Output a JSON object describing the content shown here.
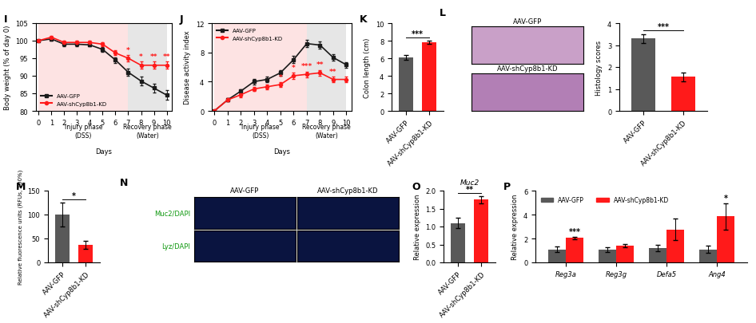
{
  "chart_data": [
    {
      "panel": "I",
      "type": "line",
      "x": [
        0,
        1,
        2,
        3,
        4,
        5,
        6,
        7,
        8,
        9,
        10
      ],
      "xlim": [
        -0.2,
        10.4
      ],
      "xticks": [
        0,
        1,
        2,
        3,
        4,
        5,
        6,
        7,
        8,
        9,
        10
      ],
      "ylim": [
        80,
        105
      ],
      "yticks": [
        80,
        85,
        90,
        95,
        100,
        105
      ],
      "x_label": "Days",
      "y_label": "Body weight (% of day 0)",
      "legend": "lower left",
      "phases": [
        {
          "label": "Injury phase\n(DSS)",
          "start": 0,
          "end": 7,
          "color": "#fde3e3"
        },
        {
          "label": "Recovery phase\n(Water)",
          "start": 7,
          "end": 10,
          "color": "#e6e6e6"
        }
      ],
      "series": [
        {
          "name": "AAV-GFP",
          "color": "#1a1a1a",
          "marker": "square",
          "values": [
            100,
            100.5,
            99,
            99,
            98.8,
            97.5,
            94.5,
            91,
            88.5,
            86.5,
            84.5
          ],
          "errors": [
            0,
            0.4,
            0.5,
            0.5,
            0.5,
            0.6,
            0.8,
            1.0,
            1.2,
            1.2,
            1.3
          ]
        },
        {
          "name": "AAV-shCyp8b1-KD",
          "color": "#ff1a1a",
          "marker": "circle",
          "values": [
            100,
            101,
            99.5,
            99.5,
            99.5,
            99,
            96.5,
            95,
            93,
            93,
            93
          ],
          "errors": [
            0,
            0.4,
            0.4,
            0.4,
            0.4,
            0.5,
            0.7,
            0.8,
            1.0,
            1.0,
            1.0
          ],
          "significance": [
            null,
            null,
            null,
            null,
            null,
            null,
            null,
            "*",
            "*",
            "**",
            "**"
          ]
        }
      ]
    },
    {
      "panel": "J",
      "type": "line",
      "x": [
        0,
        1,
        2,
        3,
        4,
        5,
        6,
        7,
        8,
        9,
        10
      ],
      "xlim": [
        -0.2,
        10.4
      ],
      "xticks": [
        0,
        1,
        2,
        3,
        4,
        5,
        6,
        7,
        8,
        9,
        10
      ],
      "ylim": [
        0,
        12
      ],
      "yticks": [
        0,
        4,
        8,
        12
      ],
      "x_label": "Days",
      "y_label": "Disease activity index",
      "legend": "upper left",
      "phases": [
        {
          "label": "Injury phase\n(DSS)",
          "start": 0,
          "end": 7,
          "color": "#fde3e3"
        },
        {
          "label": "Recovery phase\n(Water)",
          "start": 7,
          "end": 10,
          "color": "#e6e6e6"
        }
      ],
      "series": [
        {
          "name": "AAV-GFP",
          "color": "#1a1a1a",
          "marker": "square",
          "values": [
            0,
            1.5,
            2.7,
            4.0,
            4.3,
            5.2,
            7.0,
            9.2,
            9.0,
            7.3,
            6.3
          ],
          "errors": [
            0,
            0.2,
            0.3,
            0.4,
            0.4,
            0.4,
            0.5,
            0.5,
            0.5,
            0.4,
            0.4
          ]
        },
        {
          "name": "AAV-shCyp8b1-KD",
          "color": "#ff1a1a",
          "marker": "circle",
          "values": [
            0,
            1.5,
            2.2,
            3.0,
            3.3,
            3.6,
            4.8,
            5.0,
            5.2,
            4.3,
            4.3
          ],
          "errors": [
            0,
            0.2,
            0.3,
            0.3,
            0.3,
            0.3,
            0.4,
            0.4,
            0.4,
            0.4,
            0.4
          ],
          "significance": [
            null,
            null,
            null,
            null,
            null,
            "*",
            "*",
            "***",
            "**",
            "**",
            null
          ]
        }
      ]
    },
    {
      "panel": "K",
      "type": "bar",
      "categories": [
        "AAV-GFP",
        "AAV-shCyp8b1-KD"
      ],
      "values": [
        6.1,
        7.8
      ],
      "errors": [
        0.3,
        0.2
      ],
      "colors": [
        "#595959",
        "#ff1a1a"
      ],
      "ylim": [
        0,
        10
      ],
      "yticks": [
        0,
        2,
        4,
        6,
        8,
        10
      ],
      "y_label": "Colon length (cm)",
      "significance": "***"
    },
    {
      "panel": "L",
      "type": "image",
      "labels": [
        "AAV-GFP",
        "AAV-shCyp8b1-KD"
      ],
      "colors": [
        "#c9a0c8",
        "#b27fb5"
      ]
    },
    {
      "type": "bar",
      "categories": [
        "AAV-GFP",
        "AAV-shCyp8b1-KD"
      ],
      "values": [
        3.3,
        1.55
      ],
      "errors": [
        0.2,
        0.2
      ],
      "colors": [
        "#595959",
        "#ff1a1a"
      ],
      "ylim": [
        0,
        4
      ],
      "yticks": [
        0,
        1,
        2,
        3,
        4
      ],
      "y_label": "Histology scores",
      "significance": "***"
    },
    {
      "panel": "M",
      "type": "bar",
      "categories": [
        "AAV-GFP",
        "AAV-shCyp8b1-KD"
      ],
      "values": [
        100,
        37
      ],
      "errors": [
        25,
        8
      ],
      "colors": [
        "#595959",
        "#ff1a1a"
      ],
      "ylim": [
        0,
        150
      ],
      "yticks": [
        0,
        50,
        100,
        150
      ],
      "y_label": "Relative fluorescence units (RFUs, 100%)",
      "significance": "*"
    },
    {
      "panel": "N",
      "type": "image",
      "columns": [
        "AAV-GFP",
        "AAV-shCyp8b1-KD"
      ],
      "rows": [
        "Muc2/DAPI",
        "Lyz/DAPI"
      ],
      "colors": [
        "#0a1440",
        "#0a1440"
      ]
    },
    {
      "panel": "O",
      "type": "bar",
      "title": "Muc2",
      "categories": [
        "AAV-GFP",
        "AAV-shCyp8b1-KD"
      ],
      "values": [
        1.1,
        1.75
      ],
      "errors": [
        0.15,
        0.1
      ],
      "colors": [
        "#595959",
        "#ff1a1a"
      ],
      "ylim": [
        0,
        2
      ],
      "yticks": [
        {
          "value": 0,
          "label": "0.0"
        },
        {
          "value": 0.5,
          "label": "0.5"
        },
        {
          "value": 1,
          "label": "1.0"
        },
        {
          "value": 1.5,
          "label": "1.5"
        },
        {
          "value": 2,
          "label": "2.0"
        }
      ],
      "y_label": "Relative expression",
      "significance": "**"
    },
    {
      "panel": "P",
      "type": "grouped_bar",
      "categories": [
        "Reg3a",
        "Reg3g",
        "Defa5",
        "Ang4"
      ],
      "ylim": [
        0,
        6
      ],
      "yticks": [
        0,
        2,
        4,
        6
      ],
      "y_label": "Relative expression",
      "legend": "upper left",
      "series": [
        {
          "name": "AAV-GFP",
          "color": "#595959",
          "values": [
            1.1,
            1.1,
            1.2,
            1.1
          ],
          "errors": [
            0.25,
            0.2,
            0.25,
            0.3
          ]
        },
        {
          "name": "AAV-shCyp8b1-KD",
          "color": "#ff1a1a",
          "values": [
            2.05,
            1.4,
            2.75,
            3.85
          ],
          "errors": [
            0.1,
            0.15,
            0.9,
            1.1
          ]
        }
      ],
      "significance": [
        "***",
        null,
        null,
        "*"
      ]
    }
  ]
}
